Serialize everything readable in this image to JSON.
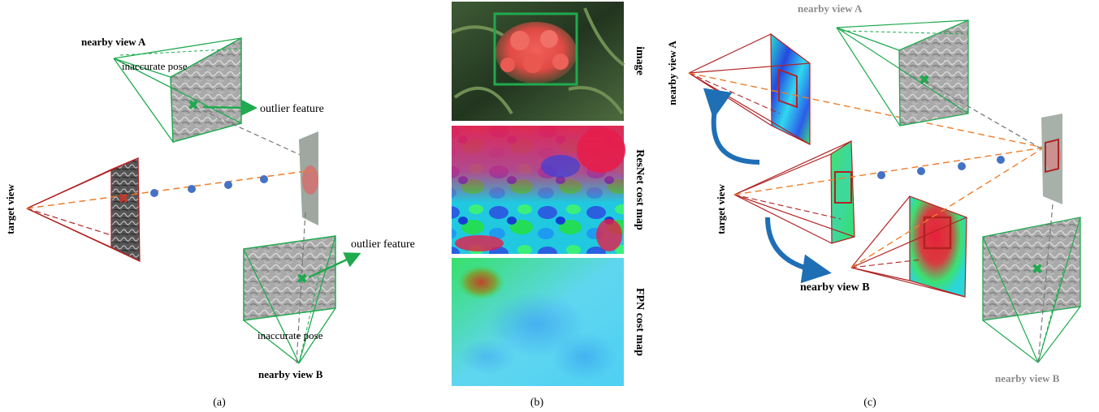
{
  "panel_a": {
    "nearby_view_a": "nearby view A",
    "inaccurate_pose_top": "inaccurate pose",
    "outlier_feature_top": "outlier feature",
    "target_view": "target view",
    "outlier_feature_bottom": "outlier feature",
    "inaccurate_pose_bottom": "inaccurate pose",
    "nearby_view_b": "nearby view B",
    "caption": "(a)"
  },
  "panel_b": {
    "image_label": "image",
    "resnet_label": "ResNet cost map",
    "fpn_label": "FPN cost map",
    "caption": "(b)"
  },
  "panel_c": {
    "nearby_view_a_left": "nearby view A",
    "nearby_view_a_top": "nearby view A",
    "target_view": "target view",
    "nearby_view_b_bold": "nearby view B",
    "nearby_view_b_gray": "nearby view B",
    "caption": "(c)"
  },
  "colors": {
    "red": "#b22222",
    "green": "#1faa4f",
    "orange": "#ef7d2a",
    "blue_dot": "#4472c4",
    "arrow_blue": "#1f6fb5",
    "gray_text": "#8c8c8c"
  }
}
